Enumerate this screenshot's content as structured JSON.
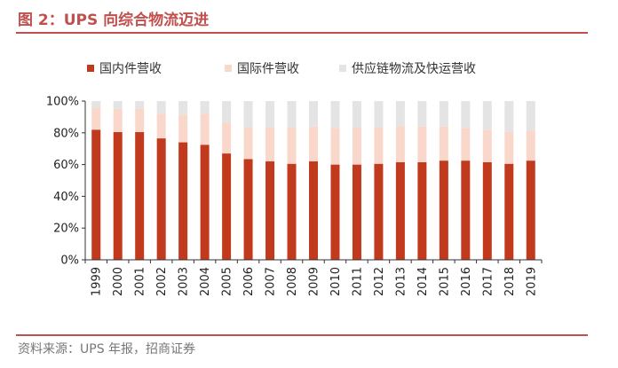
{
  "title": "图 2：UPS 向综合物流迈进",
  "source": "资料来源：UPS 年报，招商证券",
  "colors": {
    "accent": "#C0504D",
    "domestic": "#C23A1E",
    "international": "#F9D8CB",
    "supply_chain": "#E4E4E4"
  },
  "chart_data": {
    "type": "bar",
    "stacked": true,
    "categories": [
      "1999",
      "2000",
      "2001",
      "2002",
      "2003",
      "2004",
      "2005",
      "2006",
      "2007",
      "2008",
      "2009",
      "2010",
      "2011",
      "2012",
      "2013",
      "2014",
      "2015",
      "2016",
      "2017",
      "2018",
      "2019"
    ],
    "series": [
      {
        "name": "国内件营收",
        "color": "#C23A1E",
        "values": [
          82,
          80.5,
          80.5,
          76.5,
          74,
          72.5,
          67,
          63.5,
          62,
          60.5,
          62,
          60,
          60,
          60.5,
          61.5,
          61.5,
          62.5,
          62.5,
          61.5,
          60.5,
          62.5
        ]
      },
      {
        "name": "国际件营收",
        "color": "#F9D8CB",
        "values": [
          14,
          14.5,
          14.5,
          15.5,
          17.5,
          19.5,
          19.5,
          20,
          21.5,
          23,
          22,
          23,
          23.5,
          23,
          23,
          22.5,
          21.5,
          20.5,
          20.5,
          20,
          19
        ]
      },
      {
        "name": "供应链物流及快运营收",
        "color": "#E4E4E4",
        "values": [
          4,
          5,
          5,
          8,
          8.5,
          8,
          13.5,
          16.5,
          16.5,
          16.5,
          16,
          17,
          16.5,
          16.5,
          15.5,
          16,
          16,
          17,
          18,
          19.5,
          18.5
        ]
      }
    ],
    "y_ticks": [
      "0%",
      "20%",
      "40%",
      "60%",
      "80%",
      "100%"
    ],
    "ylim": [
      0,
      100
    ],
    "legend_position": "top",
    "grid": false
  }
}
